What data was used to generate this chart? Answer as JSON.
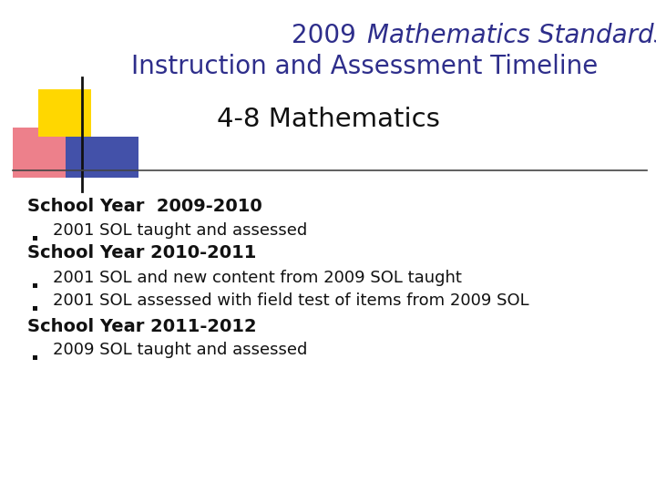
{
  "bg_color": "#ffffff",
  "title_line1_prefix": "2009 ",
  "title_line1_italic": "Mathematics Standards of Learning",
  "title_line2": "Instruction and Assessment Timeline",
  "subtitle": "4-8 Mathematics",
  "title_color": "#2e2e8b",
  "subtitle_color": "#111111",
  "body_lines": [
    {
      "text": "School Year  2009-2010",
      "bold": true,
      "bullet": false
    },
    {
      "text": "2001 SOL taught and assessed",
      "bold": false,
      "bullet": true
    },
    {
      "text": "School Year 2010-2011",
      "bold": true,
      "bullet": false
    },
    {
      "text": "2001 SOL and new content from 2009 SOL taught",
      "bold": false,
      "bullet": true
    },
    {
      "text": "2001 SOL assessed with field test of items from 2009 SOL",
      "bold": false,
      "bullet": true
    },
    {
      "text": "School Year 2011-2012",
      "bold": true,
      "bullet": false
    },
    {
      "text": "2009 SOL taught and assessed",
      "bold": false,
      "bullet": true
    }
  ],
  "body_color": "#111111",
  "body_fontsize": 13.0,
  "bold_fontsize": 14.0,
  "title_fontsize": 20.0,
  "subtitle_fontsize": 21.0,
  "logo_yellow": "#FFD700",
  "logo_blue": "#2e3ea0",
  "logo_red": "#e85565"
}
